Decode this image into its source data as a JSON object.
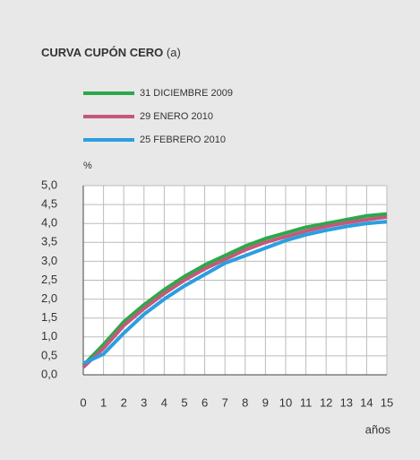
{
  "chart_data": {
    "type": "line",
    "title": "CURVA CUPÓN CERO",
    "title_note": "(a)",
    "ylabel": "%",
    "xlabel": "años",
    "x": [
      0,
      1,
      2,
      3,
      4,
      5,
      6,
      7,
      8,
      9,
      10,
      11,
      12,
      13,
      14,
      15
    ],
    "series": [
      {
        "name": "31 DICIEMBRE 2009",
        "color": "#2ca84a",
        "values": [
          0.25,
          0.8,
          1.4,
          1.85,
          2.25,
          2.6,
          2.9,
          3.15,
          3.4,
          3.6,
          3.75,
          3.9,
          4.0,
          4.1,
          4.2,
          4.25
        ]
      },
      {
        "name": "29 ENERO 2010",
        "color": "#c4587c",
        "values": [
          0.2,
          0.7,
          1.3,
          1.75,
          2.15,
          2.5,
          2.8,
          3.05,
          3.3,
          3.5,
          3.65,
          3.8,
          3.92,
          4.02,
          4.1,
          4.17
        ]
      },
      {
        "name": "25 FEBRERO 2010",
        "color": "#2a9fe0",
        "values": [
          0.3,
          0.55,
          1.1,
          1.6,
          2.0,
          2.35,
          2.65,
          2.95,
          3.15,
          3.35,
          3.55,
          3.7,
          3.82,
          3.92,
          4.0,
          4.05
        ]
      }
    ],
    "xlim": [
      0,
      15
    ],
    "xticks": [
      0,
      1,
      2,
      3,
      4,
      5,
      6,
      7,
      8,
      9,
      10,
      11,
      12,
      13,
      14,
      15
    ],
    "ylim": [
      0,
      5
    ],
    "yticks": [
      {
        "value": 0,
        "label": "0,0"
      },
      {
        "value": 0.5,
        "label": "0,5"
      },
      {
        "value": 1,
        "label": "1,0"
      },
      {
        "value": 1.5,
        "label": "1,5"
      },
      {
        "value": 2,
        "label": "2,0"
      },
      {
        "value": 2.5,
        "label": "2,5"
      },
      {
        "value": 3,
        "label": "3,0"
      },
      {
        "value": 3.5,
        "label": "3,5"
      },
      {
        "value": 4,
        "label": "4,0"
      },
      {
        "value": 4.5,
        "label": "4,5"
      },
      {
        "value": 5,
        "label": "5,0"
      }
    ],
    "grid": true
  }
}
